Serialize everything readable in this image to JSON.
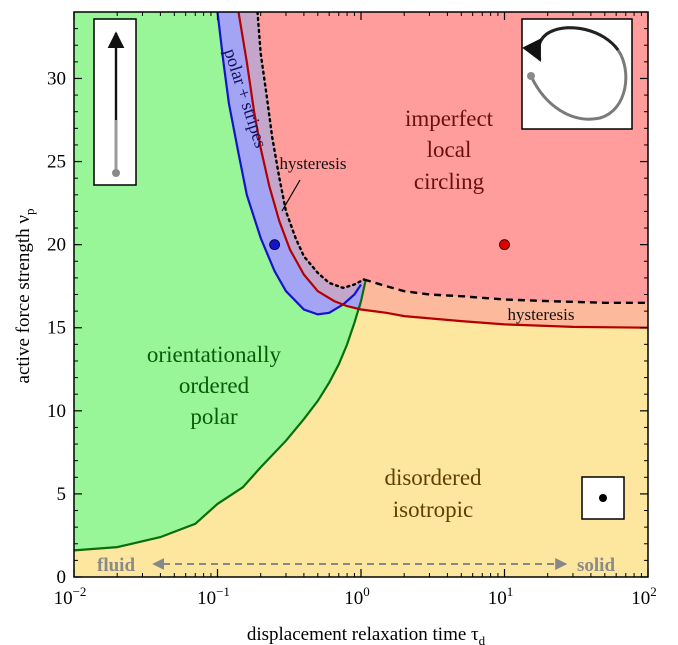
{
  "chart_data": {
    "type": "area",
    "xlabel": "displacement relaxation time τ",
    "xlabel_sub": "d",
    "ylabel": "active force strength ν",
    "ylabel_sub": "p",
    "x_scale": "log",
    "xlim": [
      0.01,
      100
    ],
    "ylim": [
      0,
      34
    ],
    "x_ticks": [
      {
        "value": 0.01,
        "base": "10",
        "exp": "−2"
      },
      {
        "value": 0.1,
        "base": "10",
        "exp": "−1"
      },
      {
        "value": 1,
        "base": "10",
        "exp": "0"
      },
      {
        "value": 10,
        "base": "10",
        "exp": "1"
      },
      {
        "value": 100,
        "base": "10",
        "exp": "2"
      }
    ],
    "y_ticks": [
      0,
      5,
      10,
      15,
      20,
      25,
      30
    ],
    "colors": {
      "polar": "#98f598",
      "disordered": "#fde69e",
      "circling": "#ff9c9c",
      "stripes": "#a4a4f5",
      "hysteresis_band": "#fdb99b",
      "hysteresis_overlap": "#c3a6c9",
      "green_line": "#0c6d0c",
      "red_line": "#b40000",
      "blue_line": "#1414cc"
    },
    "boundaries": {
      "polar_disordered": [
        [
          0.01,
          1.6
        ],
        [
          0.02,
          1.8
        ],
        [
          0.04,
          2.4
        ],
        [
          0.07,
          3.2
        ],
        [
          0.1,
          4.4
        ],
        [
          0.15,
          5.4
        ],
        [
          0.2,
          6.6
        ],
        [
          0.3,
          8.2
        ],
        [
          0.4,
          9.5
        ],
        [
          0.5,
          10.6
        ],
        [
          0.6,
          11.7
        ],
        [
          0.7,
          12.8
        ],
        [
          0.8,
          14.0
        ],
        [
          0.9,
          15.3
        ],
        [
          1.0,
          16.6
        ],
        [
          1.08,
          17.9
        ]
      ],
      "red_line": [
        [
          0.14,
          34
        ],
        [
          0.16,
          31
        ],
        [
          0.18,
          28
        ],
        [
          0.2,
          25.8
        ],
        [
          0.23,
          23.5
        ],
        [
          0.27,
          21.4
        ],
        [
          0.32,
          19.7
        ],
        [
          0.4,
          18.2
        ],
        [
          0.5,
          17.2
        ],
        [
          0.65,
          16.6
        ],
        [
          0.8,
          16.3
        ],
        [
          1.0,
          16.1
        ],
        [
          1.5,
          15.9
        ],
        [
          2,
          15.7
        ],
        [
          5,
          15.4
        ],
        [
          10,
          15.2
        ],
        [
          30,
          15.05
        ],
        [
          100,
          15.0
        ]
      ],
      "blue_line": [
        [
          0.1,
          34
        ],
        [
          0.11,
          31
        ],
        [
          0.12,
          28.5
        ],
        [
          0.14,
          25.5
        ],
        [
          0.16,
          23
        ],
        [
          0.2,
          20.4
        ],
        [
          0.25,
          18.4
        ],
        [
          0.3,
          17.2
        ],
        [
          0.4,
          16.1
        ],
        [
          0.5,
          15.8
        ],
        [
          0.6,
          15.9
        ],
        [
          0.75,
          16.4
        ],
        [
          0.9,
          17.0
        ],
        [
          1.0,
          17.6
        ]
      ],
      "dotted_hysteresis": [
        [
          0.19,
          34
        ],
        [
          0.2,
          31.5
        ],
        [
          0.22,
          29
        ],
        [
          0.24,
          26.5
        ],
        [
          0.27,
          24
        ],
        [
          0.3,
          22
        ],
        [
          0.35,
          20.4
        ],
        [
          0.4,
          19.3
        ],
        [
          0.5,
          18.3
        ],
        [
          0.6,
          17.7
        ],
        [
          0.75,
          17.4
        ],
        [
          0.9,
          17.6
        ],
        [
          1.05,
          17.9
        ]
      ],
      "dashed_hysteresis": [
        [
          1.05,
          17.9
        ],
        [
          1.5,
          17.5
        ],
        [
          2,
          17.2
        ],
        [
          3,
          17.0
        ],
        [
          5,
          16.9
        ],
        [
          10,
          16.7
        ],
        [
          20,
          16.6
        ],
        [
          50,
          16.5
        ],
        [
          100,
          16.5
        ]
      ]
    },
    "points": [
      {
        "x": 0.25,
        "y": 20,
        "color": "#1414cc"
      },
      {
        "x": 10,
        "y": 20,
        "color": "#e00000"
      }
    ],
    "region_labels": {
      "circling": [
        "imperfect",
        "local",
        "circling"
      ],
      "polar": [
        "orientationally",
        "ordered",
        "polar"
      ],
      "disordered": [
        "disordered",
        "isotropic"
      ],
      "stripes": "polar + stripes",
      "hysteresis_top": "hysteresis",
      "hysteresis_right": "hysteresis"
    },
    "region_label_colors": {
      "circling": "#6b1010",
      "polar": "#0a5a0a",
      "disordered": "#5e4000",
      "stripes": "#10105e"
    },
    "bottom_axis": {
      "left_label": "fluid",
      "right_label": "solid"
    },
    "insets": [
      "straight-arrow-icon",
      "circling-loop-icon",
      "dot-icon"
    ]
  }
}
